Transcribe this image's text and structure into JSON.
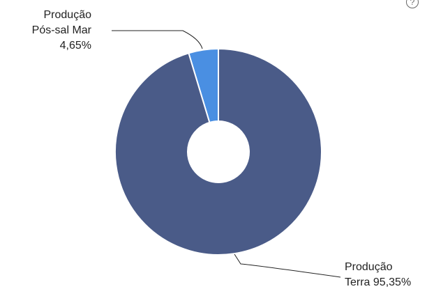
{
  "help_icon": "?",
  "chart_data": {
    "type": "pie",
    "donut": true,
    "slices": [
      {
        "label_lines": [
          "Produção",
          "Pós-sal Mar",
          "4,65%"
        ],
        "value": 4.65,
        "color": "#4a8fe2"
      },
      {
        "label_lines": [
          "Produção",
          "Terra 95,35%"
        ],
        "value": 95.35,
        "color": "#4a5b88"
      }
    ]
  }
}
